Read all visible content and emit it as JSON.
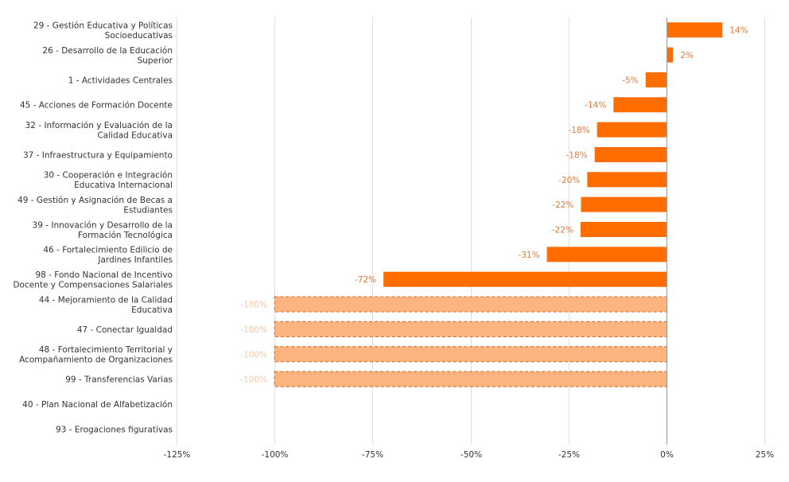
{
  "chart_data": {
    "type": "bar",
    "orientation": "horizontal",
    "title": "",
    "xlabel": "",
    "ylabel": "",
    "xlim": [
      -125,
      25
    ],
    "x_ticks": [
      -125,
      -100,
      -75,
      -50,
      -25,
      0,
      25
    ],
    "x_tick_labels": [
      "-125%",
      "-100%",
      "-75%",
      "-50%",
      "-25%",
      "0%",
      "25%"
    ],
    "grid": "vertical",
    "legend": "none",
    "categories": [
      [
        "29 - Gestión Educativa y Políticas",
        "Socioeducativas"
      ],
      [
        "26 - Desarrollo de la Educación",
        "Superior"
      ],
      [
        "1 - Actividades Centrales"
      ],
      [
        "45 - Acciones de Formación Docente"
      ],
      [
        "32 - Información y Evaluación de la",
        "Calidad Educativa"
      ],
      [
        "37 - Infraestructura y Equipamiento"
      ],
      [
        "30 - Cooperación e Integración",
        "Educativa Internacional"
      ],
      [
        "49 - Gestión y Asignación de Becas a",
        "Estudiantes"
      ],
      [
        "39 - Innovación y Desarrollo de la",
        "Formación Tecnológica"
      ],
      [
        "46 - Fortalecimiento Edilicio de",
        "Jardines Infantiles"
      ],
      [
        "98 - Fondo Nacional de Incentivo",
        "Docente y Compensaciones Salariales"
      ],
      [
        "44 - Mejoramiento de la Calidad",
        "Educativa"
      ],
      [
        "47 - Conectar Igualdad"
      ],
      [
        "48 - Fortalecimiento Territorial y",
        "Acompañamiento de Organizaciones"
      ],
      [
        "99 - Transferencias Varias"
      ],
      [
        "40 - Plan Nacional de Alfabetización"
      ],
      [
        "93 - Erogaciones figurativas"
      ]
    ],
    "values": [
      14.3,
      1.7,
      -5.3,
      -13.5,
      -17.7,
      -18.3,
      -20.2,
      -21.8,
      -21.9,
      -30.5,
      -72.2,
      -100,
      -100,
      -100,
      -100,
      null,
      null
    ],
    "data_labels": [
      "14%",
      "2%",
      "-5%",
      "-14%",
      "-18%",
      "-18%",
      "-20%",
      "-22%",
      "-22%",
      "-31%",
      "-72%",
      "-100%",
      "-100%",
      "-100%",
      "-100%",
      "",
      ""
    ],
    "styles": [
      "solid",
      "solid",
      "solid",
      "solid",
      "solid",
      "solid",
      "solid",
      "solid",
      "solid",
      "solid",
      "solid",
      "dashed",
      "dashed",
      "dashed",
      "dashed",
      "none",
      "none"
    ]
  },
  "colors": {
    "bar_solid": "#ff6c00",
    "bar_dashed_fill": "#fdb47f",
    "bar_dashed_stroke": "#d9773a",
    "label_solid": "#e07a3c",
    "label_dashed": "#f4c8a8",
    "grid": "#dddddd",
    "zero_axis": "#a0a0a0",
    "text": "#333333"
  }
}
